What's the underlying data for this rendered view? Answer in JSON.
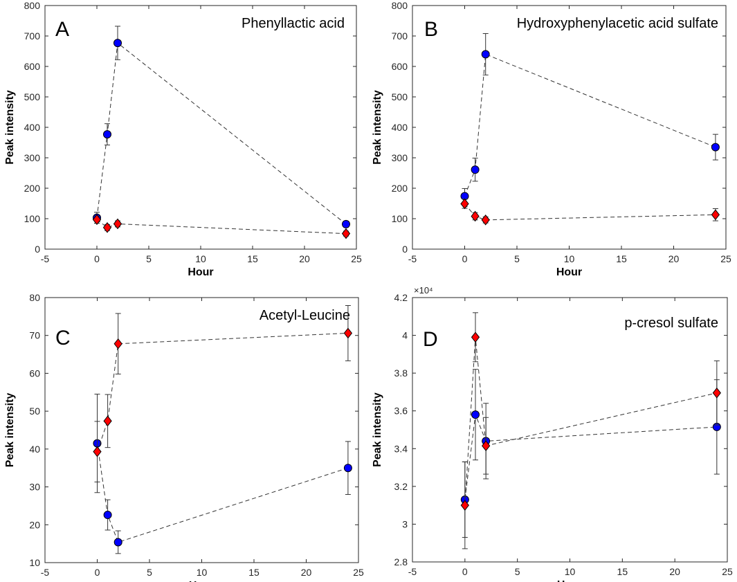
{
  "chart_data": [
    {
      "type": "scatter",
      "panel_label": "A",
      "title": "Phenyllactic acid",
      "xlabel": "Hour",
      "ylabel": "Peak intensity",
      "xlim": [
        -5,
        25
      ],
      "ylim": [
        0,
        800
      ],
      "xticks": [
        -5,
        0,
        5,
        10,
        15,
        20,
        25
      ],
      "yticks": [
        0,
        100,
        200,
        300,
        400,
        500,
        600,
        700,
        800
      ],
      "x_tick_labels": [
        "-5",
        "0",
        "5",
        "10",
        "15",
        "20",
        "25"
      ],
      "y_tick_labels": [
        "0",
        "100",
        "200",
        "300",
        "400",
        "500",
        "600",
        "700",
        "800"
      ],
      "series": [
        {
          "name": "blue-circle",
          "marker": "circle",
          "color": "#0000ff",
          "x": [
            0,
            1,
            2,
            24
          ],
          "y": [
            103,
            377,
            677,
            82
          ],
          "err": [
            18,
            35,
            55,
            10
          ]
        },
        {
          "name": "red-diamond",
          "marker": "diamond",
          "color": "#ff0000",
          "x": [
            0,
            1,
            2,
            24
          ],
          "y": [
            97,
            71,
            83,
            51
          ],
          "err": [
            12,
            10,
            10,
            8
          ]
        }
      ]
    },
    {
      "type": "scatter",
      "panel_label": "B",
      "title": "Hydroxyphenylacetic acid sulfate",
      "xlabel": "Hour",
      "ylabel": "Peak intensity",
      "xlim": [
        -5,
        25
      ],
      "ylim": [
        0,
        800
      ],
      "xticks": [
        -5,
        0,
        5,
        10,
        15,
        20,
        25
      ],
      "yticks": [
        0,
        100,
        200,
        300,
        400,
        500,
        600,
        700,
        800
      ],
      "x_tick_labels": [
        "-5",
        "0",
        "5",
        "10",
        "15",
        "20",
        "25"
      ],
      "y_tick_labels": [
        "0",
        "100",
        "200",
        "300",
        "400",
        "500",
        "600",
        "700",
        "800"
      ],
      "series": [
        {
          "name": "blue-circle",
          "marker": "circle",
          "color": "#0000ff",
          "x": [
            0,
            1,
            2,
            24
          ],
          "y": [
            174,
            261,
            640,
            335
          ],
          "err": [
            25,
            38,
            68,
            42
          ]
        },
        {
          "name": "red-diamond",
          "marker": "diamond",
          "color": "#ff0000",
          "x": [
            0,
            1,
            2,
            24
          ],
          "y": [
            149,
            108,
            96,
            113
          ],
          "err": [
            15,
            12,
            10,
            20
          ]
        }
      ]
    },
    {
      "type": "scatter",
      "panel_label": "C",
      "title": "Acetyl-Leucine",
      "xlabel": "Hour",
      "ylabel": "Peak intensity",
      "xlim": [
        -5,
        25
      ],
      "ylim": [
        10,
        80
      ],
      "xticks": [
        -5,
        0,
        5,
        10,
        15,
        20,
        25
      ],
      "yticks": [
        10,
        20,
        30,
        40,
        50,
        60,
        70,
        80
      ],
      "x_tick_labels": [
        "-5",
        "0",
        "5",
        "10",
        "15",
        "20",
        "25"
      ],
      "y_tick_labels": [
        "10",
        "20",
        "30",
        "40",
        "50",
        "60",
        "70",
        "80"
      ],
      "series": [
        {
          "name": "blue-circle",
          "marker": "circle",
          "color": "#0000ff",
          "x": [
            0,
            1,
            2,
            24
          ],
          "y": [
            41.5,
            22.6,
            15.4,
            35
          ],
          "err": [
            13,
            4,
            3,
            7
          ]
        },
        {
          "name": "red-diamond",
          "marker": "diamond",
          "color": "#ff0000",
          "x": [
            0,
            1,
            2,
            24
          ],
          "y": [
            39.3,
            47.4,
            67.8,
            70.6
          ],
          "err": [
            8,
            7,
            8,
            7.3
          ]
        }
      ]
    },
    {
      "type": "scatter",
      "panel_label": "D",
      "title": "p-cresol sulfate",
      "xlabel": "Hour",
      "ylabel": "Peak intensity",
      "xlim": [
        -5,
        25
      ],
      "ylim": [
        28000,
        42000
      ],
      "axis_exponent_label": "×10⁴",
      "xticks": [
        -5,
        0,
        5,
        10,
        15,
        20,
        25
      ],
      "yticks": [
        28000,
        30000,
        32000,
        34000,
        36000,
        38000,
        40000,
        42000
      ],
      "x_tick_labels": [
        "-5",
        "0",
        "5",
        "10",
        "15",
        "20",
        "25"
      ],
      "y_tick_labels": [
        "2.8",
        "3",
        "3.2",
        "3.4",
        "3.6",
        "3.8",
        "4",
        "4.2"
      ],
      "series": [
        {
          "name": "blue-circle",
          "marker": "circle",
          "color": "#0000ff",
          "x": [
            0,
            1,
            2,
            24
          ],
          "y": [
            31300,
            35800,
            34400,
            35150
          ],
          "err": [
            2000,
            2400,
            2000,
            2500
          ]
        },
        {
          "name": "red-diamond",
          "marker": "diamond",
          "color": "#ff0000",
          "x": [
            0,
            1,
            2,
            24
          ],
          "y": [
            31000,
            39900,
            34150,
            36950
          ],
          "err": [
            2300,
            1300,
            1500,
            1700
          ]
        }
      ]
    }
  ]
}
